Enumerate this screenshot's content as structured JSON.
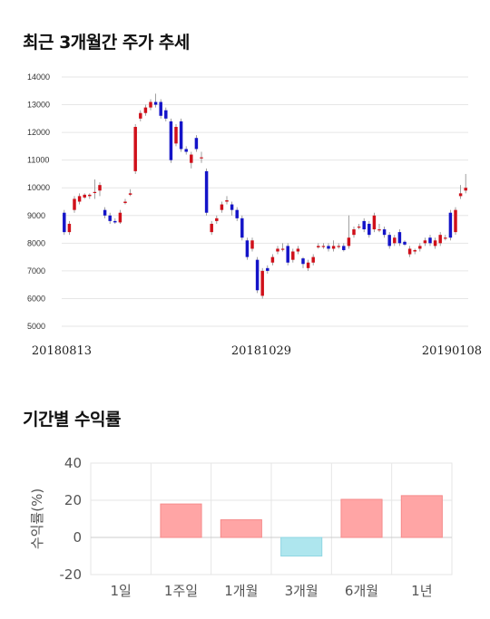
{
  "section1": {
    "title": "최근 3개월간 주가 추세"
  },
  "section2": {
    "title": "기간별 수익률"
  },
  "colors": {
    "up": "#d0101a",
    "down": "#1414c8",
    "grid": "#e6e6e6",
    "bar_pos": "#ffa5a5",
    "bar_neg": "#aee6ee"
  },
  "chart_data": [
    {
      "type": "candlestick",
      "title": "최근 3개월간 주가 추세",
      "ylim": [
        5000,
        14000
      ],
      "yticks": [
        "14000",
        "13000",
        "12000",
        "11000",
        "10000",
        "9000",
        "8000",
        "7000",
        "6000",
        "5000"
      ],
      "xticks": [
        "20180813",
        "20181029",
        "20190108"
      ],
      "grid": true,
      "candles": [
        {
          "o": 9100,
          "c": 8400,
          "h": 9200,
          "l": 8300
        },
        {
          "o": 8400,
          "c": 8700,
          "h": 8800,
          "l": 8300
        },
        {
          "o": 9200,
          "c": 9600,
          "h": 9700,
          "l": 9100
        },
        {
          "o": 9500,
          "c": 9700,
          "h": 9800,
          "l": 9400
        },
        {
          "o": 9650,
          "c": 9750,
          "h": 9800,
          "l": 9600
        },
        {
          "o": 9700,
          "c": 9750,
          "h": 9800,
          "l": 9600
        },
        {
          "o": 9850,
          "c": 9850,
          "h": 10300,
          "l": 9600
        },
        {
          "o": 9900,
          "c": 10100,
          "h": 10200,
          "l": 9700
        },
        {
          "o": 9200,
          "c": 9000,
          "h": 9300,
          "l": 8900
        },
        {
          "o": 9000,
          "c": 8800,
          "h": 9100,
          "l": 8700
        },
        {
          "o": 8800,
          "c": 8750,
          "h": 8900,
          "l": 8700
        },
        {
          "o": 8750,
          "c": 9100,
          "h": 9200,
          "l": 8700
        },
        {
          "o": 9450,
          "c": 9500,
          "h": 9600,
          "l": 9400
        },
        {
          "o": 9750,
          "c": 9800,
          "h": 9950,
          "l": 9700
        },
        {
          "o": 10600,
          "c": 12200,
          "h": 12300,
          "l": 10500
        },
        {
          "o": 12500,
          "c": 12700,
          "h": 12800,
          "l": 12400
        },
        {
          "o": 12700,
          "c": 12900,
          "h": 13000,
          "l": 12600
        },
        {
          "o": 12900,
          "c": 13100,
          "h": 13200,
          "l": 12800
        },
        {
          "o": 13100,
          "c": 13000,
          "h": 13400,
          "l": 12900
        },
        {
          "o": 13100,
          "c": 12600,
          "h": 13200,
          "l": 12500
        },
        {
          "o": 12800,
          "c": 12500,
          "h": 12900,
          "l": 12400
        },
        {
          "o": 12400,
          "c": 11000,
          "h": 12500,
          "l": 10900
        },
        {
          "o": 11600,
          "c": 12200,
          "h": 12300,
          "l": 11500
        },
        {
          "o": 12400,
          "c": 11400,
          "h": 12500,
          "l": 11300
        },
        {
          "o": 11400,
          "c": 11300,
          "h": 11500,
          "l": 11200
        },
        {
          "o": 10900,
          "c": 11200,
          "h": 11300,
          "l": 10700
        },
        {
          "o": 11800,
          "c": 11400,
          "h": 11900,
          "l": 11300
        },
        {
          "o": 11100,
          "c": 11100,
          "h": 11300,
          "l": 10900
        },
        {
          "o": 10600,
          "c": 9100,
          "h": 10700,
          "l": 9000
        },
        {
          "o": 8400,
          "c": 8700,
          "h": 8800,
          "l": 8300
        },
        {
          "o": 8800,
          "c": 8900,
          "h": 9000,
          "l": 8700
        },
        {
          "o": 9200,
          "c": 9400,
          "h": 9500,
          "l": 9100
        },
        {
          "o": 9500,
          "c": 9550,
          "h": 9700,
          "l": 9400
        },
        {
          "o": 9400,
          "c": 9200,
          "h": 9500,
          "l": 9000
        },
        {
          "o": 9200,
          "c": 8900,
          "h": 9300,
          "l": 8800
        },
        {
          "o": 8900,
          "c": 8200,
          "h": 9000,
          "l": 8100
        },
        {
          "o": 8100,
          "c": 7500,
          "h": 8200,
          "l": 7400
        },
        {
          "o": 7800,
          "c": 8100,
          "h": 8200,
          "l": 7700
        },
        {
          "o": 7400,
          "c": 6300,
          "h": 7500,
          "l": 6200
        },
        {
          "o": 6100,
          "c": 7000,
          "h": 7100,
          "l": 6000
        },
        {
          "o": 7100,
          "c": 7000,
          "h": 7200,
          "l": 6900
        },
        {
          "o": 7300,
          "c": 7500,
          "h": 7600,
          "l": 7200
        },
        {
          "o": 7700,
          "c": 7800,
          "h": 7900,
          "l": 7600
        },
        {
          "o": 7800,
          "c": 7800,
          "h": 8000,
          "l": 7700
        },
        {
          "o": 7900,
          "c": 7300,
          "h": 8000,
          "l": 7200
        },
        {
          "o": 7400,
          "c": 7700,
          "h": 7800,
          "l": 7300
        },
        {
          "o": 7700,
          "c": 7800,
          "h": 7900,
          "l": 7600
        },
        {
          "o": 7450,
          "c": 7250,
          "h": 7500,
          "l": 7100
        },
        {
          "o": 7100,
          "c": 7300,
          "h": 7400,
          "l": 7000
        },
        {
          "o": 7300,
          "c": 7500,
          "h": 7600,
          "l": 7200
        },
        {
          "o": 7850,
          "c": 7900,
          "h": 8000,
          "l": 7800
        },
        {
          "o": 7900,
          "c": 7900,
          "h": 8000,
          "l": 7800
        },
        {
          "o": 7900,
          "c": 7800,
          "h": 8000,
          "l": 7700
        },
        {
          "o": 7800,
          "c": 7900,
          "h": 8100,
          "l": 7700
        },
        {
          "o": 7900,
          "c": 7900,
          "h": 8000,
          "l": 7800
        },
        {
          "o": 7900,
          "c": 7750,
          "h": 8000,
          "l": 7700
        },
        {
          "o": 7900,
          "c": 8200,
          "h": 9000,
          "l": 7800
        },
        {
          "o": 8300,
          "c": 8500,
          "h": 8600,
          "l": 8200
        },
        {
          "o": 8600,
          "c": 8600,
          "h": 8700,
          "l": 8500
        },
        {
          "o": 8800,
          "c": 8500,
          "h": 8900,
          "l": 8400
        },
        {
          "o": 8700,
          "c": 8300,
          "h": 8800,
          "l": 8200
        },
        {
          "o": 8500,
          "c": 9000,
          "h": 9100,
          "l": 8400
        },
        {
          "o": 8500,
          "c": 8500,
          "h": 8700,
          "l": 8400
        },
        {
          "o": 8500,
          "c": 8300,
          "h": 8600,
          "l": 8200
        },
        {
          "o": 8300,
          "c": 7900,
          "h": 8400,
          "l": 7800
        },
        {
          "o": 8000,
          "c": 8200,
          "h": 8300,
          "l": 7900
        },
        {
          "o": 8400,
          "c": 8000,
          "h": 8500,
          "l": 7900
        },
        {
          "o": 8050,
          "c": 7950,
          "h": 8100,
          "l": 7900
        },
        {
          "o": 7600,
          "c": 7800,
          "h": 7900,
          "l": 7500
        },
        {
          "o": 7700,
          "c": 7750,
          "h": 7800,
          "l": 7600
        },
        {
          "o": 7800,
          "c": 7900,
          "h": 8000,
          "l": 7700
        },
        {
          "o": 8000,
          "c": 8100,
          "h": 8200,
          "l": 7900
        },
        {
          "o": 8200,
          "c": 8000,
          "h": 8300,
          "l": 7900
        },
        {
          "o": 7900,
          "c": 8100,
          "h": 8200,
          "l": 7800
        },
        {
          "o": 8000,
          "c": 8300,
          "h": 8400,
          "l": 7900
        },
        {
          "o": 8200,
          "c": 8200,
          "h": 8300,
          "l": 8100
        },
        {
          "o": 9100,
          "c": 8200,
          "h": 9200,
          "l": 8100
        },
        {
          "o": 8400,
          "c": 9200,
          "h": 9300,
          "l": 8300
        },
        {
          "o": 9700,
          "c": 9800,
          "h": 10100,
          "l": 9600
        },
        {
          "o": 9900,
          "c": 10000,
          "h": 10500,
          "l": 9800
        }
      ]
    },
    {
      "type": "bar",
      "title": "기간별 수익률",
      "ylabel": "수익률(%)",
      "ylim": [
        -20,
        40
      ],
      "yticks": [
        "40",
        "20",
        "0",
        "-20"
      ],
      "categories": [
        "1일",
        "1주일",
        "1개월",
        "3개월",
        "6개월",
        "1년"
      ],
      "values": [
        0,
        18,
        9.5,
        -10,
        20.5,
        22.5
      ],
      "grid": true
    }
  ]
}
